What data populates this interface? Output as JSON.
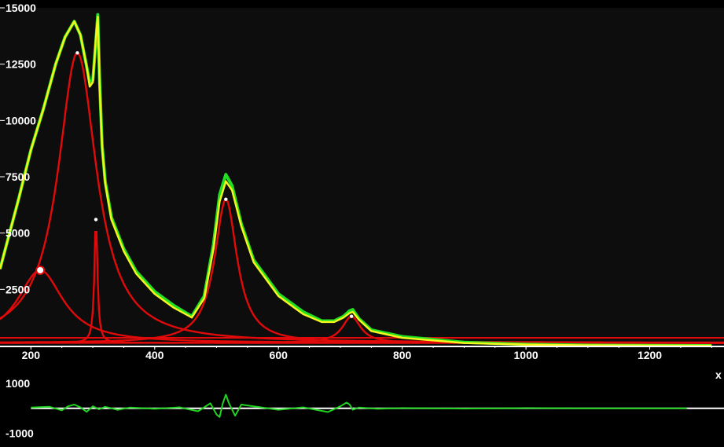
{
  "chart_data": [
    {
      "type": "line",
      "title": "",
      "xlabel": "",
      "ylabel": "",
      "xlim": [
        150,
        1320
      ],
      "ylim": [
        0,
        15000
      ],
      "grid": false,
      "x_ticks": [
        200,
        400,
        600,
        800,
        1000,
        1200
      ],
      "x_tick_labels": [
        "200",
        "400",
        "600",
        "800",
        "1000",
        "1200"
      ],
      "y_ticks": [
        2500,
        5000,
        7500,
        10000,
        12500,
        15000
      ],
      "y_tick_labels": [
        "2500",
        "5000",
        "7500",
        "10000",
        "12500",
        "15000"
      ],
      "background_color": "#0d0d0d",
      "series": [
        {
          "role": "measured-spectrum",
          "color": "#21e021",
          "x": [
            150,
            180,
            200,
            220,
            240,
            255,
            270,
            280,
            290,
            295,
            300,
            305,
            308,
            311,
            315,
            320,
            330,
            350,
            370,
            400,
            430,
            460,
            480,
            495,
            505,
            515,
            525,
            540,
            560,
            600,
            640,
            670,
            690,
            705,
            715,
            720,
            730,
            750,
            800,
            900,
            1000,
            1100,
            1300
          ],
          "y": [
            3400,
            6500,
            8700,
            10500,
            12500,
            13700,
            14400,
            13800,
            12400,
            11700,
            11800,
            13500,
            14700,
            11800,
            8900,
            7300,
            5700,
            4300,
            3300,
            2400,
            1800,
            1300,
            2200,
            4500,
            6700,
            7600,
            7100,
            5400,
            3800,
            2300,
            1500,
            1100,
            1100,
            1300,
            1550,
            1600,
            1200,
            700,
            400,
            150,
            60,
            20,
            0
          ]
        },
        {
          "role": "fitted-envelope",
          "color": "#f5f51e",
          "x": [
            150,
            180,
            200,
            220,
            240,
            255,
            270,
            280,
            290,
            295,
            300,
            305,
            308,
            311,
            315,
            320,
            330,
            350,
            370,
            400,
            430,
            460,
            480,
            495,
            505,
            515,
            525,
            540,
            560,
            600,
            640,
            670,
            690,
            705,
            715,
            720,
            730,
            750,
            800,
            900,
            1000,
            1100,
            1300
          ],
          "y": [
            3400,
            6500,
            8700,
            10500,
            12500,
            13700,
            14400,
            13800,
            12400,
            11500,
            11700,
            13700,
            14600,
            11600,
            8800,
            7200,
            5600,
            4200,
            3200,
            2300,
            1700,
            1250,
            2100,
            4300,
            6400,
            7300,
            6900,
            5300,
            3700,
            2200,
            1400,
            1050,
            1050,
            1250,
            1450,
            1500,
            1150,
            650,
            350,
            120,
            50,
            15,
            0
          ]
        }
      ],
      "components": {
        "color": "#e00a0a",
        "peaks": [
          {
            "x": 215,
            "y": 3350,
            "marker": "circle"
          },
          {
            "x": 275,
            "y": 13000,
            "marker": "dot"
          },
          {
            "x": 305,
            "y": 5600,
            "marker": "dot"
          },
          {
            "x": 515,
            "y": 6500,
            "marker": "dot"
          },
          {
            "x": 718,
            "y": 1300,
            "marker": "dot"
          }
        ]
      },
      "baseline": 350
    },
    {
      "type": "line",
      "title": "",
      "xlim": [
        150,
        1320
      ],
      "ylim": [
        -1400,
        1700
      ],
      "y_ticks": [
        1000,
        -1000
      ],
      "y_tick_labels": [
        "1000",
        "-1000"
      ],
      "corner_label": "x",
      "zero_line_color": "#ffffff",
      "series": [
        {
          "role": "residual",
          "color": "#21d421",
          "x": [
            200,
            230,
            250,
            260,
            270,
            280,
            290,
            300,
            310,
            320,
            340,
            360,
            400,
            440,
            470,
            490,
            500,
            505,
            510,
            515,
            520,
            530,
            540,
            560,
            600,
            640,
            680,
            700,
            710,
            715,
            720,
            730,
            760,
            800,
            900,
            1000,
            1100,
            1200,
            1260
          ],
          "y": [
            30,
            60,
            -80,
            80,
            150,
            40,
            -140,
            80,
            -40,
            60,
            -60,
            30,
            -20,
            40,
            -120,
            200,
            -250,
            -350,
            200,
            550,
            200,
            -300,
            150,
            80,
            -60,
            40,
            -150,
            80,
            230,
            150,
            -60,
            30,
            -20,
            10,
            -10,
            10,
            0,
            0,
            0
          ]
        }
      ]
    }
  ]
}
